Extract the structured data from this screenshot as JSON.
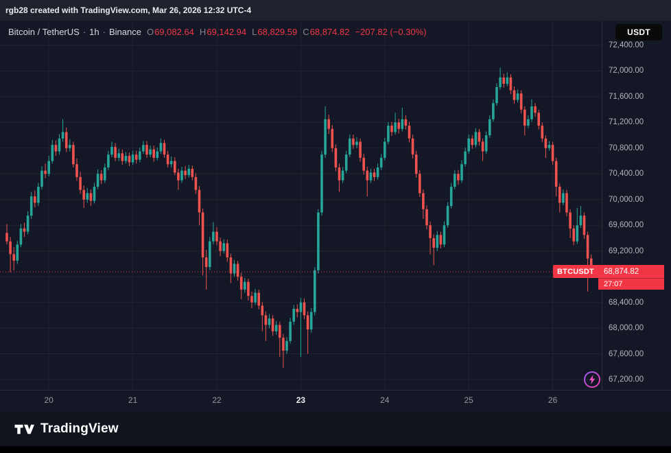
{
  "topbar": {
    "title": "rgb28 created with TradingView.com, Mar 26, 2026 12:32 UTC-4"
  },
  "legend": {
    "title": "Bitcoin / TetherUS",
    "sep": "·",
    "interval": "1h",
    "exchange": "Binance",
    "o_label": "O",
    "o": "69,082.64",
    "h_label": "H",
    "h": "69,142.94",
    "l_label": "L",
    "l": "68,829.59",
    "c_label": "C",
    "c": "68,874.82",
    "change": "−207.82 (−0.30%)"
  },
  "currency_button": {
    "label": "USDT"
  },
  "price_tag": {
    "symbol": "BTCUSDT",
    "price": "68,874.82",
    "countdown": "27:07"
  },
  "footer": {
    "brand": "TradingView"
  },
  "colors": {
    "up": "#26a69a",
    "down": "#ef5350",
    "accent_red": "#f23645",
    "background": "#141826"
  },
  "chart_data": {
    "type": "candlestick",
    "symbol": "BTCUSDT",
    "exchange": "Binance",
    "interval": "1h",
    "last_price": 68874.82,
    "price_axis": {
      "min_visible": 67040,
      "max_visible": 72550,
      "ticks": [
        {
          "price": 72400,
          "label": "72,400.00"
        },
        {
          "price": 72000,
          "label": "72,000.00"
        },
        {
          "price": 71600,
          "label": "71,600.00"
        },
        {
          "price": 71200,
          "label": "71,200.00"
        },
        {
          "price": 70800,
          "label": "70,800.00"
        },
        {
          "price": 70400,
          "label": "70,400.00"
        },
        {
          "price": 70000,
          "label": "70,000.00"
        },
        {
          "price": 69600,
          "label": "69,600.00"
        },
        {
          "price": 69200,
          "label": "69,200.00"
        },
        {
          "price": 68800,
          "label": "68,800.00"
        },
        {
          "price": 68400,
          "label": "68,400.00"
        },
        {
          "price": 68000,
          "label": "68,000.00"
        },
        {
          "price": 67600,
          "label": "67,600.00"
        },
        {
          "price": 67200,
          "label": "67,200.00"
        }
      ]
    },
    "time_axis": {
      "ticks": [
        {
          "index": 12,
          "label": "20",
          "bold": false
        },
        {
          "index": 36,
          "label": "21",
          "bold": false
        },
        {
          "index": 60,
          "label": "22",
          "bold": false
        },
        {
          "index": 84,
          "label": "23",
          "bold": true
        },
        {
          "index": 108,
          "label": "24",
          "bold": false
        },
        {
          "index": 132,
          "label": "25",
          "bold": false
        },
        {
          "index": 156,
          "label": "26",
          "bold": false
        }
      ]
    },
    "candles": [
      [
        69480,
        69620,
        69300,
        69350
      ],
      [
        69350,
        69420,
        68870,
        69150
      ],
      [
        69150,
        69260,
        68900,
        69050
      ],
      [
        69050,
        69360,
        69000,
        69300
      ],
      [
        69300,
        69620,
        69260,
        69550
      ],
      [
        69550,
        69640,
        69420,
        69500
      ],
      [
        69500,
        69820,
        69460,
        69750
      ],
      [
        69750,
        70120,
        69700,
        70050
      ],
      [
        70050,
        70140,
        69880,
        69950
      ],
      [
        69950,
        70260,
        69900,
        70200
      ],
      [
        70200,
        70520,
        70160,
        70450
      ],
      [
        70450,
        70560,
        70330,
        70400
      ],
      [
        70400,
        70680,
        70360,
        70600
      ],
      [
        70600,
        70930,
        70560,
        70850
      ],
      [
        70850,
        70920,
        70680,
        70750
      ],
      [
        70750,
        71020,
        70700,
        70950
      ],
      [
        70950,
        71250,
        70900,
        71050
      ],
      [
        71050,
        71120,
        70740,
        70800
      ],
      [
        70800,
        70940,
        70750,
        70850
      ],
      [
        70850,
        70900,
        70500,
        70550
      ],
      [
        70550,
        70640,
        70290,
        70350
      ],
      [
        70350,
        70430,
        70090,
        70150
      ],
      [
        70150,
        70220,
        69870,
        70000
      ],
      [
        70000,
        70180,
        69950,
        70100
      ],
      [
        70100,
        70160,
        69900,
        69980
      ],
      [
        69980,
        70260,
        69940,
        70200
      ],
      [
        70200,
        70470,
        70160,
        70400
      ],
      [
        70400,
        70460,
        70240,
        70300
      ],
      [
        70300,
        70560,
        70260,
        70500
      ],
      [
        70500,
        70760,
        70460,
        70700
      ],
      [
        70700,
        70900,
        70660,
        70820
      ],
      [
        70820,
        70880,
        70600,
        70650
      ],
      [
        70650,
        70790,
        70600,
        70720
      ],
      [
        70720,
        70780,
        70540,
        70600
      ],
      [
        70600,
        70740,
        70560,
        70680
      ],
      [
        70680,
        70730,
        70520,
        70580
      ],
      [
        70580,
        70760,
        70540,
        70700
      ],
      [
        70700,
        70760,
        70560,
        70620
      ],
      [
        70620,
        70810,
        70580,
        70750
      ],
      [
        70750,
        70910,
        70710,
        70850
      ],
      [
        70850,
        70910,
        70650,
        70700
      ],
      [
        70700,
        70840,
        70660,
        70780
      ],
      [
        70780,
        70840,
        70590,
        70650
      ],
      [
        70650,
        70810,
        70610,
        70750
      ],
      [
        70750,
        70950,
        70710,
        70880
      ],
      [
        70880,
        70930,
        70650,
        70700
      ],
      [
        70700,
        70760,
        70500,
        70550
      ],
      [
        70550,
        70670,
        70500,
        70600
      ],
      [
        70600,
        70660,
        70380,
        70420
      ],
      [
        70420,
        70480,
        70150,
        70300
      ],
      [
        70300,
        70510,
        70260,
        70450
      ],
      [
        70450,
        70520,
        70320,
        70380
      ],
      [
        70380,
        70540,
        70340,
        70480
      ],
      [
        70480,
        70530,
        70300,
        70350
      ],
      [
        70350,
        70410,
        70090,
        70150
      ],
      [
        70150,
        70210,
        69600,
        69800
      ],
      [
        69800,
        69860,
        68820,
        69100
      ],
      [
        69100,
        69220,
        68600,
        68950
      ],
      [
        68950,
        69420,
        68900,
        69350
      ],
      [
        69350,
        69650,
        69300,
        69500
      ],
      [
        69500,
        69570,
        69290,
        69350
      ],
      [
        69350,
        69410,
        69120,
        69200
      ],
      [
        69200,
        69380,
        69160,
        69320
      ],
      [
        69320,
        69380,
        69030,
        69100
      ],
      [
        69100,
        69160,
        68700,
        68850
      ],
      [
        68850,
        69060,
        68800,
        69000
      ],
      [
        69000,
        69050,
        68740,
        68800
      ],
      [
        68800,
        68860,
        68450,
        68600
      ],
      [
        68600,
        68780,
        68550,
        68720
      ],
      [
        68720,
        68770,
        68430,
        68500
      ],
      [
        68500,
        68570,
        68310,
        68400
      ],
      [
        68400,
        68610,
        68360,
        68550
      ],
      [
        68550,
        68600,
        68290,
        68350
      ],
      [
        68350,
        68410,
        67950,
        68200
      ],
      [
        68200,
        68260,
        67800,
        68050
      ],
      [
        68050,
        68220,
        68000,
        68150
      ],
      [
        68150,
        68200,
        67880,
        67950
      ],
      [
        67950,
        68110,
        67900,
        68050
      ],
      [
        68050,
        68100,
        67550,
        67850
      ],
      [
        67850,
        67910,
        67380,
        67650
      ],
      [
        67650,
        67860,
        67600,
        67800
      ],
      [
        67800,
        68160,
        67760,
        68100
      ],
      [
        68100,
        68360,
        68050,
        68300
      ],
      [
        68300,
        68370,
        68170,
        68250
      ],
      [
        68250,
        68470,
        67550,
        68400
      ],
      [
        68400,
        68460,
        68140,
        68200
      ],
      [
        68200,
        68260,
        67600,
        67980
      ],
      [
        67980,
        68310,
        67930,
        68250
      ],
      [
        68250,
        68950,
        68200,
        68900
      ],
      [
        68900,
        69850,
        68850,
        69800
      ],
      [
        69800,
        70760,
        69750,
        70700
      ],
      [
        70700,
        71450,
        70650,
        71250
      ],
      [
        71250,
        71320,
        71020,
        71100
      ],
      [
        71100,
        71160,
        70740,
        70800
      ],
      [
        70800,
        70860,
        70440,
        70500
      ],
      [
        70500,
        70560,
        70120,
        70300
      ],
      [
        70300,
        70510,
        70260,
        70450
      ],
      [
        70450,
        70760,
        70410,
        70700
      ],
      [
        70700,
        71010,
        70660,
        70950
      ],
      [
        70950,
        71010,
        70790,
        70850
      ],
      [
        70850,
        70970,
        70800,
        70900
      ],
      [
        70900,
        70950,
        70590,
        70650
      ],
      [
        70650,
        70710,
        70390,
        70450
      ],
      [
        70450,
        70510,
        70050,
        70300
      ],
      [
        70300,
        70480,
        70260,
        70420
      ],
      [
        70420,
        70480,
        70290,
        70350
      ],
      [
        70350,
        70560,
        70310,
        70500
      ],
      [
        70500,
        70710,
        70460,
        70650
      ],
      [
        70650,
        70960,
        70610,
        70900
      ],
      [
        70900,
        71210,
        70860,
        71150
      ],
      [
        71150,
        71210,
        70990,
        71050
      ],
      [
        71050,
        71350,
        71010,
        71200
      ],
      [
        71200,
        71260,
        71030,
        71100
      ],
      [
        71100,
        71430,
        71060,
        71250
      ],
      [
        71250,
        71310,
        71090,
        71150
      ],
      [
        71150,
        71210,
        70890,
        70950
      ],
      [
        70950,
        71010,
        70640,
        70700
      ],
      [
        70700,
        70760,
        70340,
        70400
      ],
      [
        70400,
        70460,
        70040,
        70100
      ],
      [
        70100,
        70160,
        69700,
        69850
      ],
      [
        69850,
        69910,
        69540,
        69600
      ],
      [
        69600,
        69660,
        69150,
        69400
      ],
      [
        69400,
        69460,
        68980,
        69250
      ],
      [
        69250,
        69510,
        69200,
        69450
      ],
      [
        69450,
        69500,
        69240,
        69300
      ],
      [
        69300,
        69660,
        69260,
        69600
      ],
      [
        69600,
        69960,
        69560,
        69900
      ],
      [
        69900,
        70260,
        69860,
        70200
      ],
      [
        70200,
        70460,
        70160,
        70400
      ],
      [
        70400,
        70460,
        70230,
        70300
      ],
      [
        70300,
        70610,
        70260,
        70550
      ],
      [
        70550,
        70810,
        70510,
        70750
      ],
      [
        70750,
        71010,
        70710,
        70950
      ],
      [
        70950,
        71000,
        70790,
        70850
      ],
      [
        70850,
        71110,
        70810,
        71050
      ],
      [
        71050,
        71100,
        70840,
        70900
      ],
      [
        70900,
        70950,
        70600,
        70750
      ],
      [
        70750,
        71060,
        70710,
        71000
      ],
      [
        71000,
        71310,
        70960,
        71250
      ],
      [
        71250,
        71560,
        71210,
        71500
      ],
      [
        71500,
        71810,
        71460,
        71750
      ],
      [
        71750,
        72050,
        71710,
        71900
      ],
      [
        71900,
        71960,
        71740,
        71800
      ],
      [
        71800,
        71980,
        71760,
        71900
      ],
      [
        71900,
        71950,
        71640,
        71700
      ],
      [
        71700,
        71760,
        71490,
        71550
      ],
      [
        71550,
        71710,
        71510,
        71650
      ],
      [
        71650,
        71700,
        71340,
        71400
      ],
      [
        71400,
        71450,
        71000,
        71150
      ],
      [
        71150,
        71310,
        71110,
        71250
      ],
      [
        71250,
        71560,
        71210,
        71450
      ],
      [
        71450,
        71500,
        71290,
        71350
      ],
      [
        71350,
        71400,
        71090,
        71150
      ],
      [
        71150,
        71200,
        70890,
        70950
      ],
      [
        70950,
        71000,
        70650,
        70800
      ],
      [
        70800,
        70910,
        70760,
        70850
      ],
      [
        70850,
        70900,
        70540,
        70600
      ],
      [
        70600,
        70650,
        70050,
        70200
      ],
      [
        70200,
        70250,
        69800,
        69950
      ],
      [
        69950,
        70160,
        69910,
        70100
      ],
      [
        70100,
        70150,
        69740,
        69800
      ],
      [
        69800,
        69850,
        69400,
        69550
      ],
      [
        69550,
        69600,
        69290,
        69350
      ],
      [
        69350,
        69870,
        69310,
        69600
      ],
      [
        69600,
        69900,
        69560,
        69750
      ],
      [
        69750,
        69800,
        69390,
        69450
      ],
      [
        69450,
        69500,
        68570,
        69082.64
      ],
      [
        69082.64,
        69142.94,
        68829.59,
        68874.82
      ]
    ]
  }
}
